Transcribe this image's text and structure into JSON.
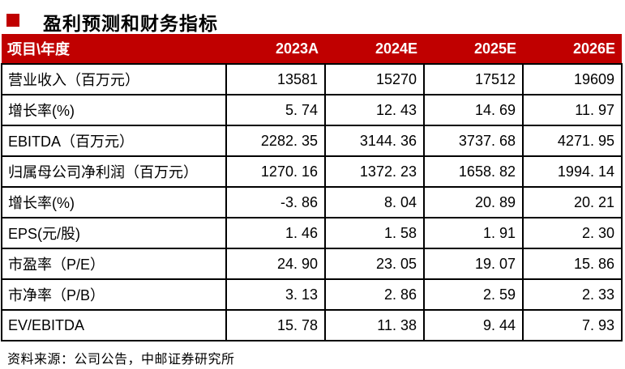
{
  "colors": {
    "header_bg": "#c00000",
    "bullet": "#c00000",
    "border": "#000000",
    "header_text": "#ffffff"
  },
  "title": "盈利预测和财务指标",
  "table": {
    "header": {
      "label_col": "项目\\年度",
      "year_cols": [
        "2023A",
        "2024E",
        "2025E",
        "2026E"
      ]
    },
    "rows": [
      {
        "label": "营业收入（百万元）",
        "values": [
          "13581",
          "15270",
          "17512",
          "19609"
        ]
      },
      {
        "label": "增长率(%)",
        "values": [
          "5. 74",
          "12. 43",
          "14. 69",
          "11. 97"
        ]
      },
      {
        "label": "EBITDA（百万元）",
        "values": [
          "2282. 35",
          "3144. 36",
          "3737. 68",
          "4271. 95"
        ]
      },
      {
        "label": "归属母公司净利润（百万元）",
        "values": [
          "1270. 16",
          "1372. 23",
          "1658. 82",
          "1994. 14"
        ]
      },
      {
        "label": "增长率(%)",
        "values": [
          "-3. 86",
          "8. 04",
          "20. 89",
          "20. 21"
        ]
      },
      {
        "label": "EPS(元/股)",
        "values": [
          "1. 46",
          "1. 58",
          "1. 91",
          "2. 30"
        ]
      },
      {
        "label": "市盈率（P/E）",
        "values": [
          "24. 90",
          "23. 05",
          "19. 07",
          "15. 86"
        ]
      },
      {
        "label": "市净率（P/B）",
        "values": [
          "3. 13",
          "2. 86",
          "2. 59",
          "2. 33"
        ]
      },
      {
        "label": "EV/EBITDA",
        "values": [
          "15. 78",
          "11. 38",
          "9. 44",
          "7. 93"
        ]
      }
    ]
  },
  "footer": {
    "source": "资料来源：公司公告，中邮证券研究所"
  }
}
